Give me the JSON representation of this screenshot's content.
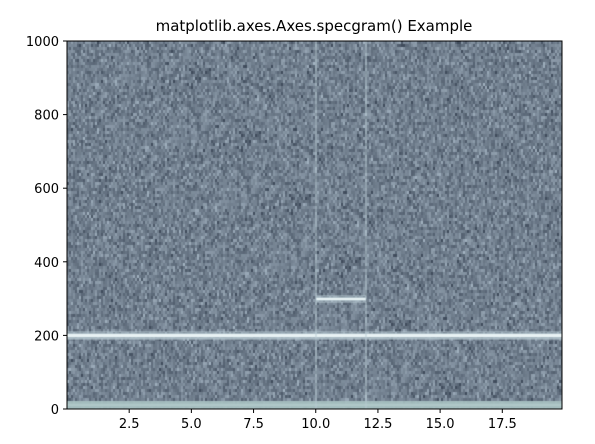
{
  "chart_data": {
    "type": "heatmap",
    "title": "matplotlib.axes.Axes.specgram() Example",
    "xlabel": "",
    "ylabel": "",
    "xlim": [
      0.0,
      19.9
    ],
    "ylim": [
      0,
      1000
    ],
    "x_ticks": [
      2.5,
      5.0,
      7.5,
      10.0,
      12.5,
      15.0,
      17.5
    ],
    "x_tick_labels": [
      "2.5",
      "5.0",
      "7.5",
      "10.0",
      "12.5",
      "15.0",
      "17.5"
    ],
    "y_ticks": [
      0,
      200,
      400,
      600,
      800,
      1000
    ],
    "y_tick_labels": [
      "0",
      "200",
      "400",
      "600",
      "800",
      "1000"
    ],
    "grid": false,
    "colormap": "bone",
    "colors": {
      "background_noise": "#788898",
      "noise_dark": "#3e4a5a",
      "noise_light": "#a6b6c4",
      "tone_band": "#e8f2f4",
      "tone_halo": "#b8cad2",
      "low_band": "#a6c0c0"
    },
    "bands": [
      {
        "name": "",
        "freq": 200,
        "x_start": 0.0,
        "x_end": 19.9,
        "width": 12
      },
      {
        "name": "",
        "freq": 300,
        "x_start": 10.0,
        "x_end": 12.0,
        "width": 10
      },
      {
        "name": "",
        "freq": 12,
        "x_start": 0.0,
        "x_end": 19.9,
        "width": 10
      }
    ],
    "transients": [
      10.0,
      12.0
    ]
  }
}
